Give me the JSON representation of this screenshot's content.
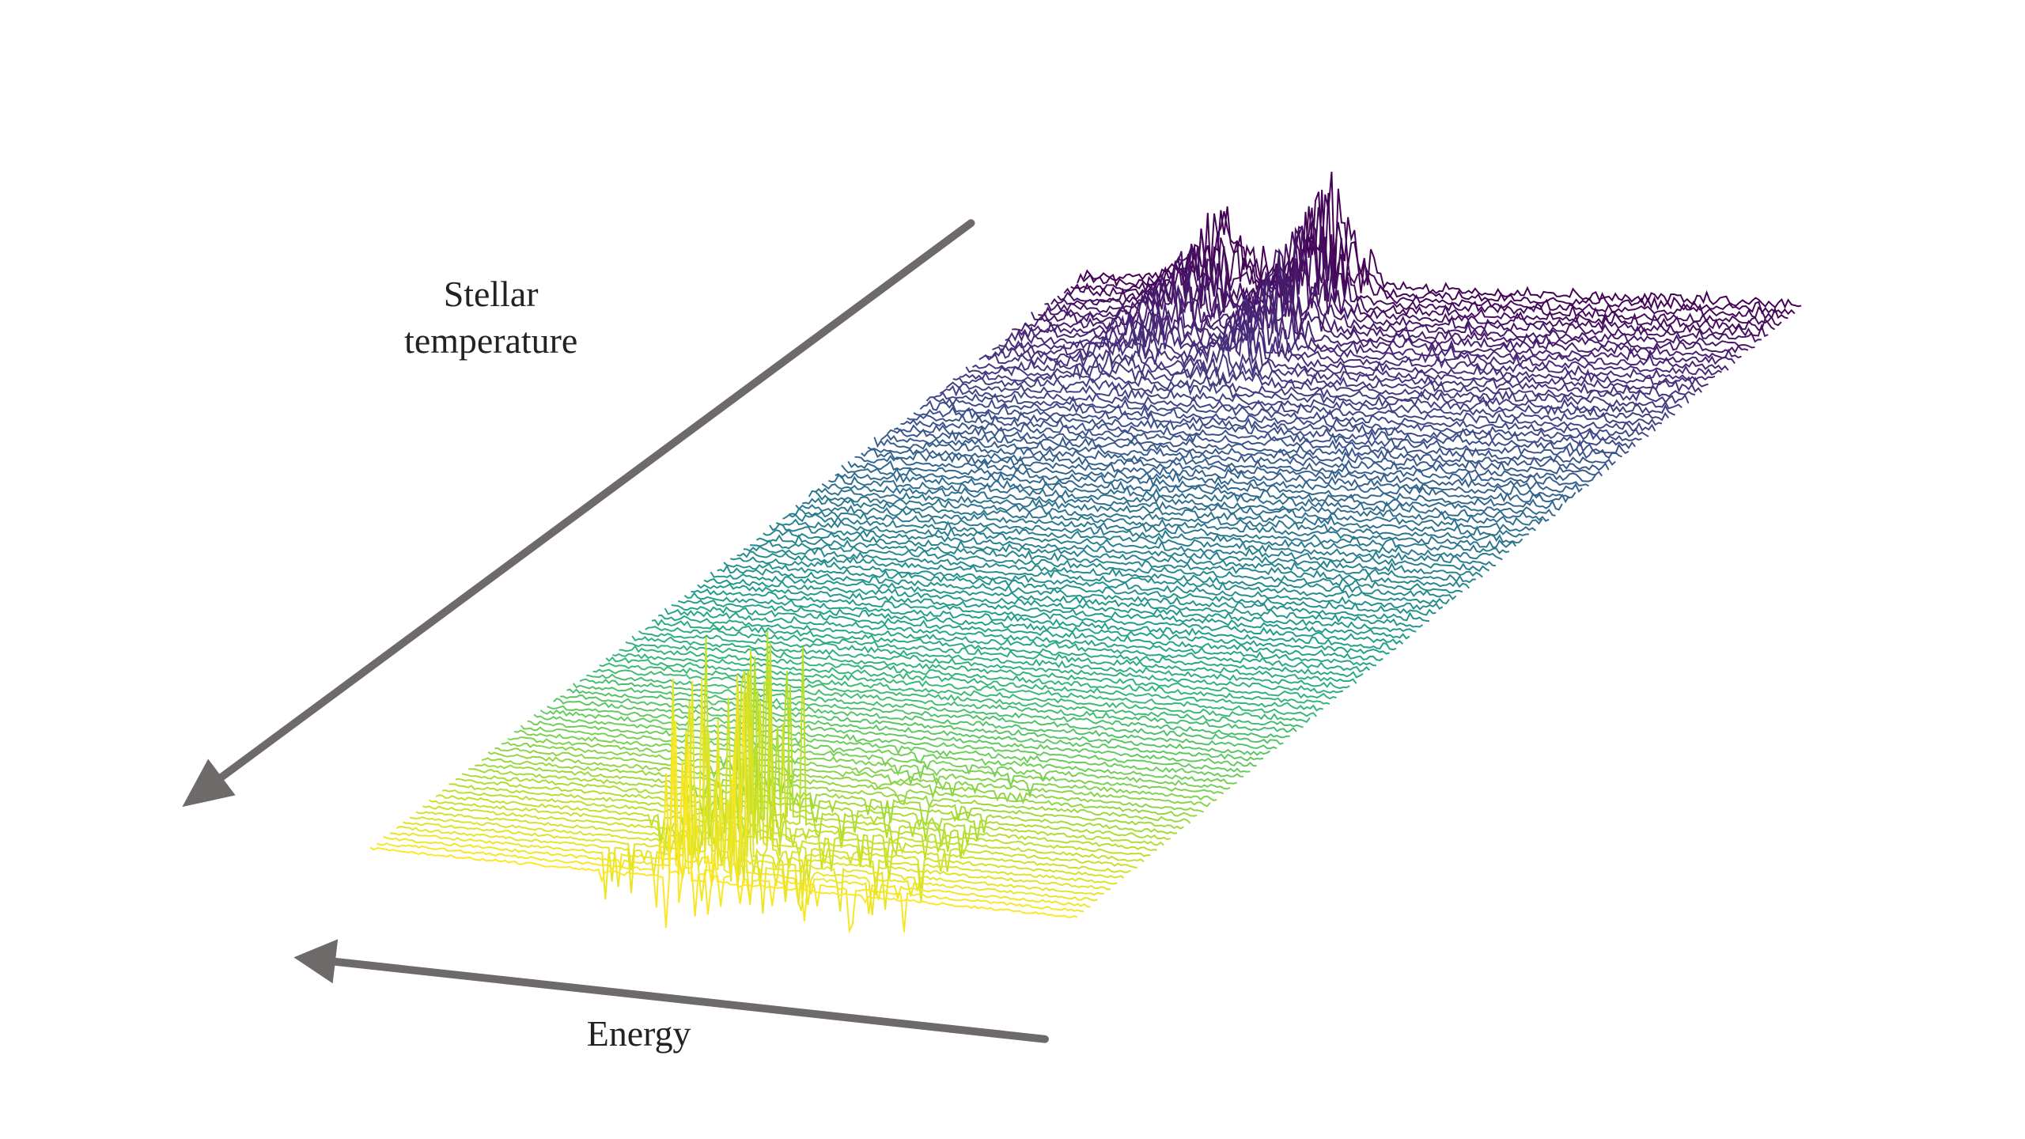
{
  "axis_labels": {
    "stellar_temperature": {
      "line1": "Stellar",
      "line2": "temperature"
    },
    "energy": "Energy"
  }
}
